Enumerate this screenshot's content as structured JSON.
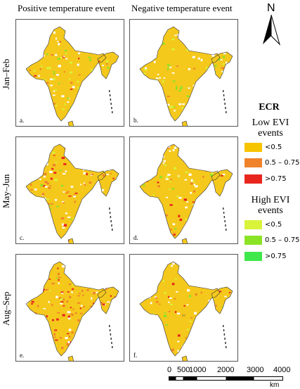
{
  "column_headers": [
    "Positive temperature event",
    "Negative temperature event"
  ],
  "row_labels": [
    "Jan–Feb",
    "May–Jun",
    "Aug–Sep"
  ],
  "panel_letters": [
    "a.",
    "b.",
    "c.",
    "d.",
    "e.",
    "f."
  ],
  "north_label": "N",
  "legend": {
    "title": "ECR",
    "low_group": "Low  EVI events",
    "high_group": "High  EVI events",
    "low_items": [
      {
        "label": "<0.5",
        "color": "#f7c400"
      },
      {
        "label": "0.5 – 0.75",
        "color": "#f0822a"
      },
      {
        "label": ">0.75",
        "color": "#e8261e"
      }
    ],
    "high_items": [
      {
        "label": "<0.5",
        "color": "#d8f33a"
      },
      {
        "label": "0.5 – 0.75",
        "color": "#8be326"
      },
      {
        "label": ">0.75",
        "color": "#3ee84a"
      }
    ]
  },
  "scalebar": {
    "labels": [
      "0",
      "500",
      "1000",
      "2000",
      "3000",
      "4000"
    ],
    "unit": "km"
  },
  "colors": {
    "base": "#f5c81c",
    "outline": "#333333",
    "water": "#ffffff"
  },
  "panels": [
    {
      "id": "a",
      "warm_share": 0.05,
      "green_share": 0.22
    },
    {
      "id": "b",
      "warm_share": 0.04,
      "green_share": 0.18
    },
    {
      "id": "c",
      "warm_share": 0.3,
      "green_share": 0.05
    },
    {
      "id": "d",
      "warm_share": 0.1,
      "green_share": 0.1
    },
    {
      "id": "e",
      "warm_share": 0.32,
      "green_share": 0.04
    },
    {
      "id": "f",
      "warm_share": 0.12,
      "green_share": 0.1
    }
  ]
}
